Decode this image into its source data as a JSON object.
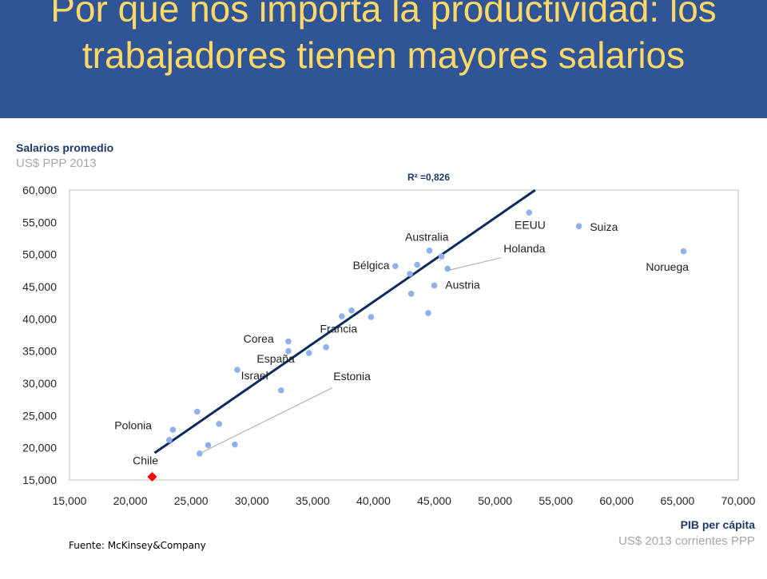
{
  "header": {
    "title": "Por qué nos importa la productividad: los trabajadores tienen mayores salarios",
    "background": "#2f5597",
    "title_color": "#ffd966"
  },
  "chart_data": {
    "type": "scatter",
    "ylabel": "Salarios promedio",
    "ylabel_sub": "US$ PPP 2013",
    "xlabel": "PIB per cápita",
    "xlabel_sub": "US$ 2013 corrientes PPP",
    "annotation": "R² =0,826",
    "xlim": [
      15000,
      70000
    ],
    "ylim": [
      15000,
      60000
    ],
    "x_ticks": [
      "15,000",
      "20,000",
      "25,000",
      "30,000",
      "35,000",
      "40,000",
      "45,000",
      "50,000",
      "55,000",
      "60,000",
      "65,000",
      "70,000"
    ],
    "y_ticks": [
      "60,000",
      "55,000",
      "50,000",
      "45,000",
      "40,000",
      "35,000",
      "30,000",
      "25,000",
      "20,000",
      "15,000"
    ],
    "x_tick_values": [
      15000,
      20000,
      25000,
      30000,
      35000,
      40000,
      45000,
      50000,
      55000,
      60000,
      65000,
      70000
    ],
    "y_tick_values": [
      60000,
      55000,
      50000,
      45000,
      40000,
      35000,
      30000,
      25000,
      20000,
      15000
    ],
    "point_color": "#8fb0ea",
    "highlight_color": "#ff0000",
    "trend_color": "#0c2a5c",
    "trendline": {
      "x": [
        22000,
        53300
      ],
      "y": [
        19200,
        60000
      ]
    },
    "points": [
      {
        "x": 23500,
        "y": 22800,
        "label": "Polonia"
      },
      {
        "x": 23200,
        "y": 21200,
        "label": ""
      },
      {
        "x": 25500,
        "y": 25600,
        "label": ""
      },
      {
        "x": 25700,
        "y": 19100,
        "label": "Estonia"
      },
      {
        "x": 26400,
        "y": 20400,
        "label": ""
      },
      {
        "x": 27300,
        "y": 23700,
        "label": ""
      },
      {
        "x": 28600,
        "y": 20500,
        "label": ""
      },
      {
        "x": 28800,
        "y": 32100,
        "label": ""
      },
      {
        "x": 32400,
        "y": 28900,
        "label": "Israel"
      },
      {
        "x": 33000,
        "y": 36500,
        "label": "Corea"
      },
      {
        "x": 33000,
        "y": 35000,
        "label": ""
      },
      {
        "x": 34700,
        "y": 34700,
        "label": ""
      },
      {
        "x": 36100,
        "y": 35600,
        "label": ""
      },
      {
        "x": 37400,
        "y": 40400,
        "label": ""
      },
      {
        "x": 38200,
        "y": 41300,
        "label": ""
      },
      {
        "x": 39800,
        "y": 40300,
        "label": ""
      },
      {
        "x": 41800,
        "y": 48200,
        "label": "Bélgica"
      },
      {
        "x": 43000,
        "y": 47000,
        "label": ""
      },
      {
        "x": 43100,
        "y": 43900,
        "label": ""
      },
      {
        "x": 43600,
        "y": 48400,
        "label": ""
      },
      {
        "x": 44500,
        "y": 40900,
        "label": ""
      },
      {
        "x": 44600,
        "y": 50600,
        "label": "Australia"
      },
      {
        "x": 45000,
        "y": 45200,
        "label": "Austria"
      },
      {
        "x": 45600,
        "y": 49700,
        "label": ""
      },
      {
        "x": 46100,
        "y": 47800,
        "label": "Holanda"
      },
      {
        "x": 52800,
        "y": 56500,
        "label": "EEUU"
      },
      {
        "x": 56900,
        "y": 54400,
        "label": "Suiza"
      },
      {
        "x": 65500,
        "y": 50500,
        "label": "Noruega"
      }
    ],
    "highlight": {
      "x": 21800,
      "y": 15500,
      "label": "Chile"
    },
    "labels": [
      {
        "text": "Polonia",
        "lx": 18700,
        "ly": 22900,
        "anchor": "start"
      },
      {
        "text": "Chile",
        "lx": 20200,
        "ly": 17400,
        "anchor": "start"
      },
      {
        "text": "Israel",
        "lx": 29100,
        "ly": 30600,
        "anchor": "start"
      },
      {
        "text": "Estonia",
        "lx": 36700,
        "ly": 30500,
        "anchor": "start"
      },
      {
        "text": "España",
        "lx": 30400,
        "ly": 33200,
        "anchor": "start"
      },
      {
        "text": "Corea",
        "lx": 29300,
        "ly": 36300,
        "anchor": "start"
      },
      {
        "text": "Francia",
        "lx": 35600,
        "ly": 37900,
        "anchor": "start"
      },
      {
        "text": "Bélgica",
        "lx": 38300,
        "ly": 47700,
        "anchor": "start"
      },
      {
        "text": "Australia",
        "lx": 42600,
        "ly": 52100,
        "anchor": "start"
      },
      {
        "text": "Holanda",
        "lx": 50700,
        "ly": 50300,
        "anchor": "start"
      },
      {
        "text": "Austria",
        "lx": 45900,
        "ly": 44700,
        "anchor": "start"
      },
      {
        "text": "EEUU",
        "lx": 51600,
        "ly": 54000,
        "anchor": "start"
      },
      {
        "text": "Suiza",
        "lx": 57800,
        "ly": 53700,
        "anchor": "start"
      },
      {
        "text": "Noruega",
        "lx": 62400,
        "ly": 47500,
        "anchor": "start"
      }
    ],
    "leaders": [
      {
        "x1": 36600,
        "y1": 29300,
        "x2": 25900,
        "y2": 19300
      },
      {
        "x1": 50500,
        "y1": 49500,
        "x2": 46300,
        "y2": 47600
      }
    ]
  },
  "source": "Fuente: McKinsey&Company"
}
